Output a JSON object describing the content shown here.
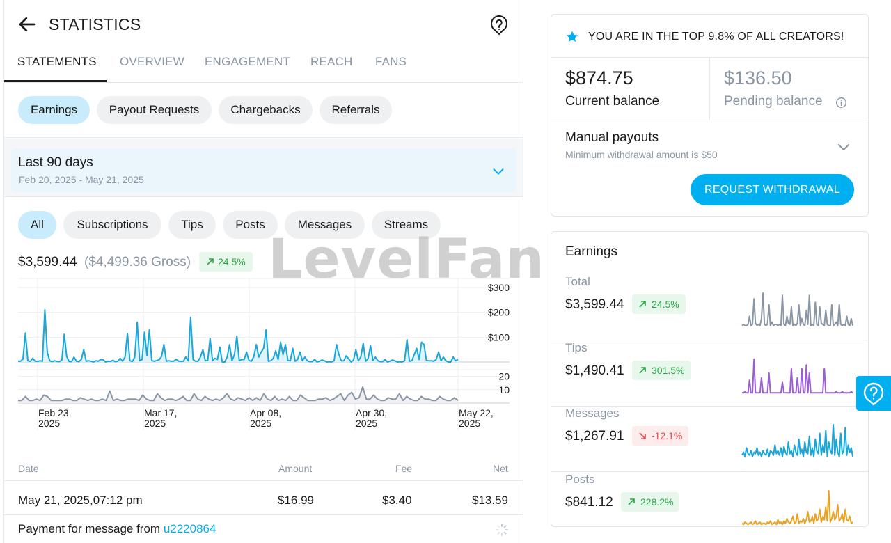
{
  "header": {
    "title": "STATISTICS",
    "back_icon": "arrow-left-icon",
    "help_icon": "help-bubble-icon"
  },
  "tabs": [
    {
      "label": "STATEMENTS",
      "active": true
    },
    {
      "label": "OVERVIEW",
      "active": false
    },
    {
      "label": "ENGAGEMENT",
      "active": false
    },
    {
      "label": "REACH",
      "active": false
    },
    {
      "label": "FANS",
      "active": false
    }
  ],
  "statement_types": [
    {
      "label": "Earnings",
      "active": true
    },
    {
      "label": "Payout Requests",
      "active": false
    },
    {
      "label": "Chargebacks",
      "active": false
    },
    {
      "label": "Referrals",
      "active": false
    }
  ],
  "date_range": {
    "title": "Last 90 days",
    "subtitle": "Feb 20, 2025 - May 21, 2025"
  },
  "filters": [
    {
      "label": "All",
      "active": true
    },
    {
      "label": "Subscriptions",
      "active": false
    },
    {
      "label": "Tips",
      "active": false
    },
    {
      "label": "Posts",
      "active": false
    },
    {
      "label": "Messages",
      "active": false
    },
    {
      "label": "Streams",
      "active": false
    }
  ],
  "summary": {
    "net": "$3,599.44",
    "gross": "($4,499.36 Gross)",
    "change": "24.5%"
  },
  "chart_data": {
    "type": "line",
    "x_tick_labels": [
      [
        "Feb 23,",
        "2025"
      ],
      [
        "Mar 17,",
        "2025"
      ],
      [
        "Apr 08,",
        "2025"
      ],
      [
        "Apr 30,",
        "2025"
      ],
      [
        "May 22,",
        "2025"
      ]
    ],
    "y_ticks_amount": [
      "$300",
      "$200",
      "$100"
    ],
    "y_ticks_count": [
      "20",
      "10"
    ],
    "amount_ylim": [
      0,
      300
    ],
    "count_ylim": [
      0,
      25
    ],
    "grid": true,
    "amount_series": [
      3,
      3,
      12,
      117,
      5,
      2,
      15,
      3,
      2,
      5,
      3,
      210,
      40,
      5,
      1,
      5,
      2,
      1,
      8,
      112,
      22,
      2,
      1,
      20,
      3,
      1,
      10,
      50,
      3,
      5,
      3,
      0,
      5,
      3,
      10,
      9,
      0,
      3,
      2,
      7,
      1,
      3,
      15,
      3,
      20,
      115,
      5,
      2,
      20,
      160,
      5,
      10,
      120,
      25,
      130,
      6,
      3,
      6,
      9,
      22,
      70,
      3,
      5,
      3,
      3,
      11,
      4,
      2,
      3,
      20,
      5,
      180,
      10,
      3,
      3,
      20,
      50,
      5,
      6,
      95,
      5,
      15,
      10,
      60,
      0,
      0,
      20,
      70,
      5,
      30,
      105,
      5,
      10,
      10,
      40,
      6,
      3,
      22,
      70,
      20,
      40,
      55,
      130,
      3,
      5,
      15,
      45,
      10,
      80,
      30,
      70,
      6,
      5,
      55,
      3,
      10,
      40,
      5,
      20,
      5,
      1,
      1,
      10,
      0,
      3,
      8,
      5,
      0,
      1,
      0,
      5,
      70,
      30,
      5,
      5,
      25,
      13,
      0,
      8,
      50,
      5,
      20,
      75,
      3,
      14,
      65,
      6,
      20,
      5,
      1,
      1,
      10,
      0,
      3,
      8,
      5,
      0,
      1,
      0,
      5,
      90,
      3,
      5,
      30,
      55,
      10,
      80,
      70,
      6,
      5,
      5,
      3,
      10,
      40,
      5,
      20,
      5,
      0,
      0,
      20,
      5,
      10
    ],
    "count_series": [
      2,
      2,
      5,
      2,
      2,
      3,
      2,
      6,
      5,
      2,
      2,
      2,
      2,
      3,
      3,
      2,
      2,
      4,
      3,
      2,
      3,
      2,
      2,
      3,
      2,
      9,
      2,
      3,
      2,
      2,
      3,
      3,
      3,
      2,
      6,
      3,
      2,
      2,
      7,
      4,
      2,
      3,
      3,
      2,
      3,
      5,
      2,
      2,
      7,
      3,
      2,
      5,
      3,
      2,
      3,
      2,
      4,
      7,
      3,
      2,
      4,
      3,
      2,
      4,
      2,
      4,
      2,
      7,
      3,
      2,
      5,
      2,
      3,
      2,
      5,
      2,
      2,
      6,
      4,
      2,
      2,
      2,
      3,
      3,
      4,
      2,
      3,
      5,
      7,
      2,
      6,
      8,
      3,
      4,
      12,
      3,
      3,
      6,
      3,
      2,
      2,
      4,
      3,
      3,
      7,
      2,
      5,
      3,
      2,
      2,
      5,
      3,
      3,
      2,
      2,
      5,
      3,
      2,
      2,
      4,
      2
    ]
  },
  "table": {
    "headers": {
      "date": "Date",
      "amount": "Amount",
      "fee": "Fee",
      "net": "Net"
    },
    "rows": [
      {
        "date": "May 21, 2025,07:12 pm",
        "amount": "$16.99",
        "fee": "$3.40",
        "net": "$13.59",
        "description": "Payment for message from ",
        "user": "u2220864"
      }
    ]
  },
  "rank": {
    "icon": "star-icon",
    "text": "YOU ARE IN THE TOP 9.8% OF ALL CREATORS!"
  },
  "balances": {
    "current": {
      "amount": "$874.75",
      "label": "Current balance"
    },
    "pending": {
      "amount": "$136.50",
      "label": "Pending balance"
    }
  },
  "payouts": {
    "title": "Manual payouts",
    "subtitle": "Minimum withdrawal amount is $50",
    "button": "REQUEST WITHDRAWAL"
  },
  "earnings": {
    "title": "Earnings",
    "rows": [
      {
        "label": "Total",
        "value": "$3,599.44",
        "change": "24.5%",
        "trend": "up",
        "color": "#8a96a3",
        "spark": [
          2,
          3,
          2,
          2,
          3,
          10,
          2,
          3,
          25,
          4,
          2,
          3,
          2,
          8,
          30,
          3,
          2,
          3,
          20,
          2,
          5,
          2,
          3,
          3,
          2,
          3,
          2,
          28,
          3,
          2,
          10,
          4,
          3,
          18,
          2,
          3,
          2,
          4,
          20,
          2,
          8,
          3,
          2,
          15,
          3,
          28,
          2,
          3,
          2,
          22,
          3,
          2,
          18,
          4,
          3,
          2,
          15,
          3,
          2,
          2,
          20,
          2,
          3,
          5,
          2,
          20,
          3,
          2,
          3,
          2,
          10,
          3,
          2,
          8,
          2
        ]
      },
      {
        "label": "Tips",
        "value": "$1,490.41",
        "change": "301.5%",
        "trend": "up",
        "color": "#9b5fd4",
        "spark": [
          1,
          1,
          2,
          1,
          1,
          12,
          1,
          1,
          30,
          1,
          1,
          1,
          1,
          14,
          1,
          1,
          1,
          1,
          18,
          1,
          1,
          1,
          1,
          1,
          1,
          1,
          1,
          10,
          1,
          1,
          1,
          1,
          1,
          22,
          1,
          1,
          1,
          14,
          1,
          1,
          22,
          1,
          1,
          25,
          1,
          18,
          1,
          1,
          1,
          1,
          1,
          1,
          1,
          1,
          1,
          22,
          1,
          1,
          1,
          1,
          1,
          1,
          1,
          2,
          1,
          1,
          1,
          2,
          1,
          1,
          1,
          1,
          1,
          2,
          1
        ]
      },
      {
        "label": "Messages",
        "value": "$1,267.91",
        "change": "-12.1%",
        "trend": "down",
        "color": "#1aa6d9",
        "spark": [
          3,
          5,
          2,
          8,
          4,
          3,
          6,
          2,
          5,
          4,
          8,
          3,
          5,
          2,
          6,
          4,
          3,
          7,
          2,
          6,
          5,
          3,
          10,
          4,
          6,
          3,
          8,
          2,
          9,
          5,
          3,
          12,
          4,
          6,
          2,
          10,
          5,
          3,
          14,
          4,
          7,
          2,
          12,
          5,
          4,
          16,
          3,
          8,
          2,
          14,
          6,
          4,
          18,
          3,
          10,
          5,
          20,
          2,
          12,
          6,
          4,
          24,
          3,
          14,
          5,
          2,
          18,
          4,
          6,
          22,
          3,
          10,
          5,
          8,
          2
        ]
      },
      {
        "label": "Posts",
        "value": "$841.12",
        "change": "228.2%",
        "trend": "up",
        "color": "#e8a122",
        "spark": [
          2,
          1,
          3,
          2,
          1,
          2,
          3,
          1,
          2,
          4,
          1,
          2,
          3,
          1,
          2,
          2,
          1,
          3,
          2,
          4,
          1,
          2,
          3,
          1,
          5,
          2,
          3,
          1,
          4,
          2,
          6,
          3,
          2,
          4,
          8,
          2,
          3,
          10,
          2,
          4,
          3,
          6,
          2,
          5,
          12,
          3,
          4,
          8,
          2,
          10,
          4,
          6,
          14,
          3,
          8,
          5,
          16,
          4,
          30,
          3,
          6,
          12,
          5,
          8,
          18,
          4,
          6,
          10,
          3,
          14,
          5,
          4,
          8,
          2,
          3
        ]
      }
    ]
  },
  "watermark": "LevelFan"
}
